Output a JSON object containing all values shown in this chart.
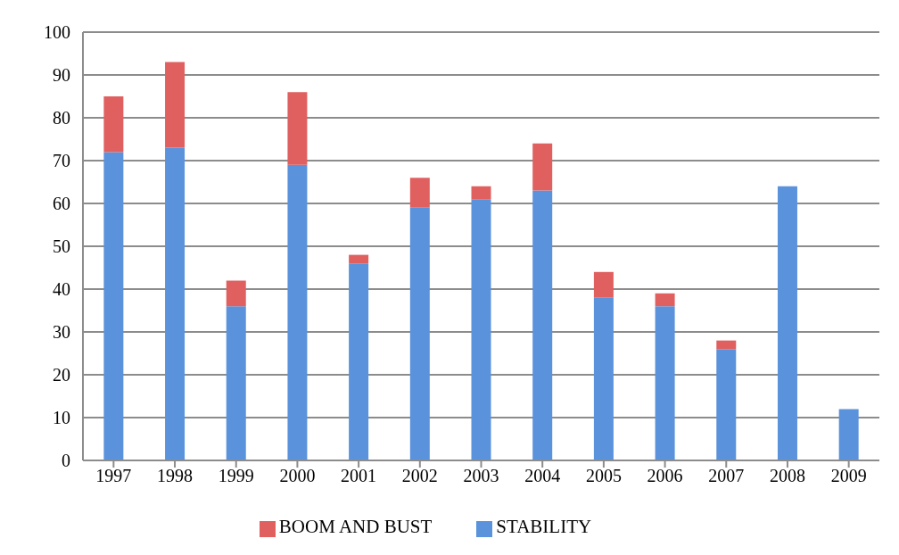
{
  "chart_data": {
    "type": "bar",
    "stacked": true,
    "categories": [
      "1997",
      "1998",
      "1999",
      "2000",
      "2001",
      "2002",
      "2003",
      "2004",
      "2005",
      "2006",
      "2007",
      "2008",
      "2009"
    ],
    "series": [
      {
        "name": "STABILITY",
        "color": "#5a92dc",
        "values": [
          72,
          73,
          36,
          69,
          46,
          59,
          61,
          63,
          38,
          36,
          26,
          64,
          12
        ]
      },
      {
        "name": "BOOM AND BUST",
        "color": "#e06060",
        "values": [
          13,
          20,
          6,
          17,
          2,
          7,
          3,
          11,
          6,
          3,
          2,
          0,
          0
        ]
      }
    ],
    "ylim": [
      0,
      100
    ],
    "yticks": [
      0,
      10,
      20,
      30,
      40,
      50,
      60,
      70,
      80,
      90,
      100
    ],
    "grid": "y",
    "legend": "bottom"
  }
}
